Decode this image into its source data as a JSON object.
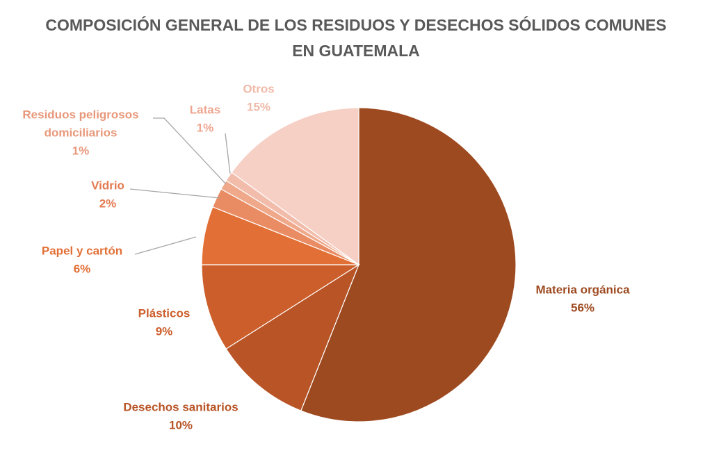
{
  "chart_data": {
    "type": "pie",
    "title": [
      "COMPOSICIÓN GENERAL DE LOS RESIDUOS Y DESECHOS SÓLIDOS COMUNES",
      "EN GUATEMALA"
    ],
    "slices": [
      {
        "label": [
          "Materia orgánica"
        ],
        "pct_label": "56%",
        "value": 56,
        "color": "#9e4a20",
        "label_color": "#9e4a20"
      },
      {
        "label": [
          "Desechos sanitarios"
        ],
        "pct_label": "10%",
        "value": 10,
        "color": "#b85426",
        "label_color": "#b85426"
      },
      {
        "label": [
          "Plásticos"
        ],
        "pct_label": "9%",
        "value": 9,
        "color": "#cc5e2b",
        "label_color": "#cc5e2b"
      },
      {
        "label": [
          "Papel y cartón"
        ],
        "pct_label": "6%",
        "value": 6,
        "color": "#e26f35",
        "label_color": "#e26f35"
      },
      {
        "label": [
          "Vidrio"
        ],
        "pct_label": "2%",
        "value": 2,
        "color": "#ea8c63",
        "label_color": "#e37a50"
      },
      {
        "label": [
          "Residuos peligrosos",
          "domiciliarios"
        ],
        "pct_label": "1%",
        "value": 1,
        "color": "#efa88a",
        "label_color": "#e8987a"
      },
      {
        "label": [
          "Latas"
        ],
        "pct_label": "1%",
        "value": 1,
        "color": "#f2bcab",
        "label_color": "#eea690"
      },
      {
        "label": [
          "Otros"
        ],
        "pct_label": "15%",
        "value": 15,
        "color": "#f6cfc5",
        "label_color": "#f0b9a8"
      }
    ],
    "legend": "none"
  }
}
